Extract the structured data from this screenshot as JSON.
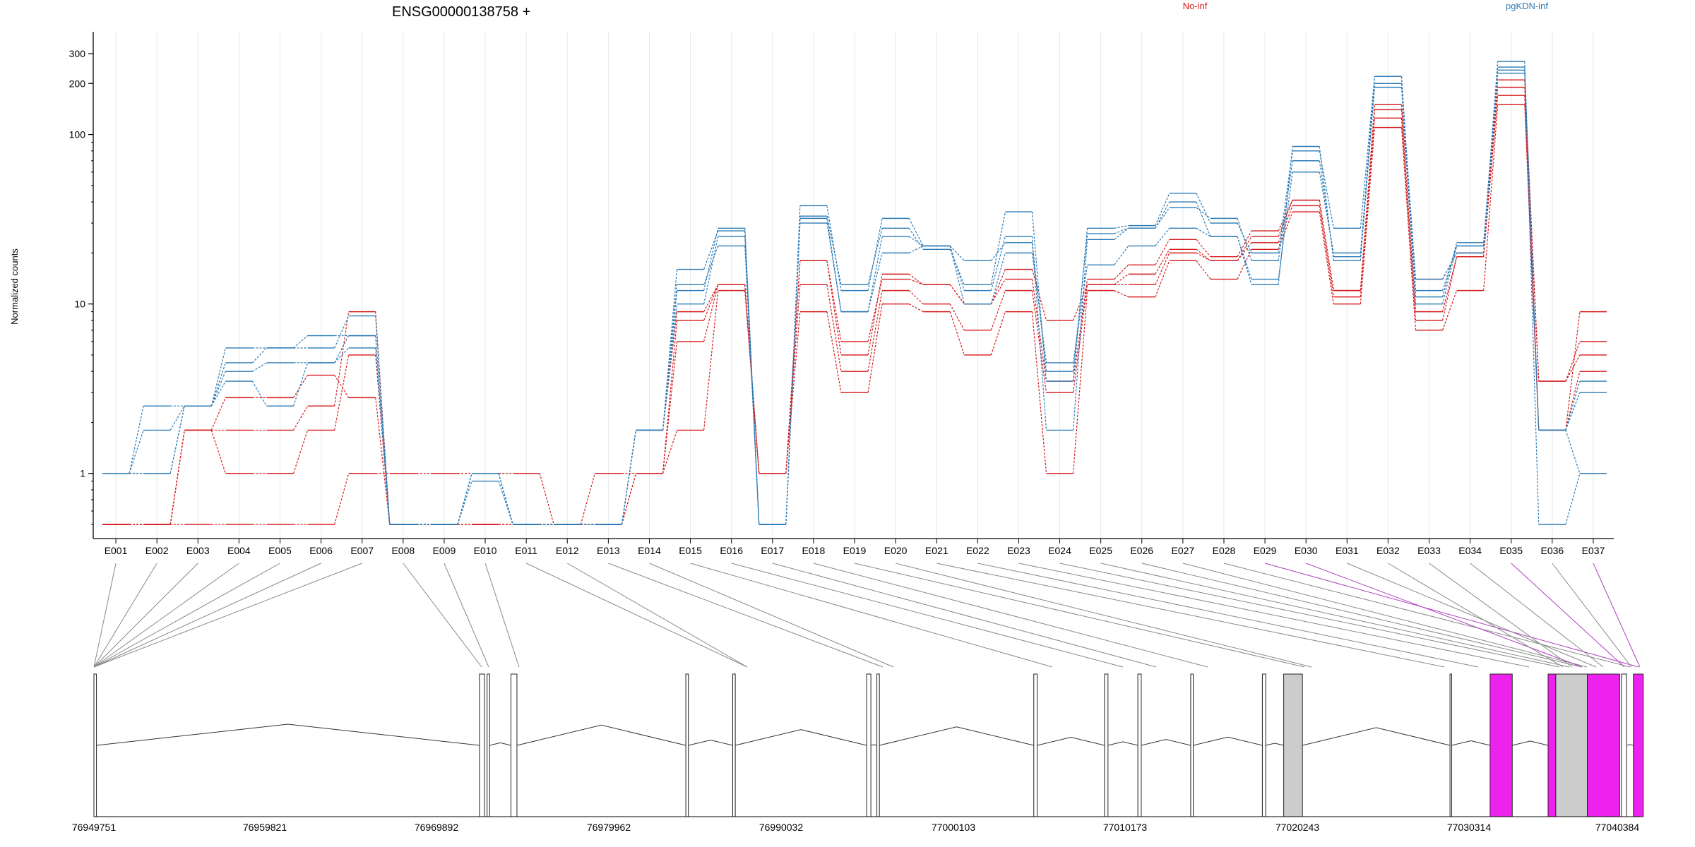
{
  "chart_data": {
    "type": "line",
    "title": "ENSG00000138758 +",
    "ylabel": "Normalized counts",
    "yscale": "log",
    "ylim": [
      0.5,
      360
    ],
    "yticks": [
      "1",
      "10",
      "100",
      "200",
      "300"
    ],
    "legend": [
      {
        "name": "No-inf",
        "color": "#d7191c"
      },
      {
        "name": "pgKDN-inf",
        "color": "#2c7bb6"
      }
    ],
    "categories": [
      "E001",
      "E002",
      "E003",
      "E004",
      "E005",
      "E006",
      "E007",
      "E008",
      "E009",
      "E010",
      "E011",
      "E012",
      "E013",
      "E014",
      "E015",
      "E016",
      "E017",
      "E018",
      "E019",
      "E020",
      "E021",
      "E022",
      "E023",
      "E024",
      "E025",
      "E026",
      "E027",
      "E028",
      "E029",
      "E030",
      "E031",
      "E032",
      "E033",
      "E034",
      "E035",
      "E036",
      "E037"
    ],
    "series": [
      {
        "group": "No-inf",
        "values": [
          0.5,
          0.5,
          0.5,
          0.5,
          0.5,
          0.5,
          1,
          1,
          1,
          1,
          1,
          0.5,
          1,
          1,
          1.8,
          12,
          1,
          9,
          3,
          10,
          9,
          5,
          9,
          1,
          12,
          11,
          18,
          14,
          21,
          35,
          10,
          110,
          7,
          12,
          150,
          1.8,
          9
        ]
      },
      {
        "group": "No-inf",
        "values": [
          0.5,
          0.5,
          1.8,
          1,
          1,
          1.8,
          5,
          0.5,
          0.5,
          0.5,
          0.5,
          0.5,
          0.5,
          1,
          6,
          13,
          1,
          13,
          4,
          12,
          10,
          7,
          12,
          3,
          13,
          13,
          20,
          18,
          23,
          38,
          11,
          125,
          8,
          19,
          170,
          1.8,
          4
        ]
      },
      {
        "group": "No-inf",
        "values": [
          0.5,
          0.5,
          1.8,
          1.8,
          1.8,
          2.5,
          9,
          0.5,
          0.5,
          0.5,
          0.5,
          0.5,
          0.5,
          1,
          8,
          13,
          1,
          18,
          6,
          14,
          13,
          10,
          16,
          8,
          13,
          15,
          21,
          18,
          25,
          41,
          12,
          140,
          9,
          19,
          190,
          3.5,
          5
        ]
      },
      {
        "group": "No-inf",
        "values": [
          0.5,
          0.5,
          1.8,
          2.8,
          2.8,
          3.8,
          2.8,
          0.5,
          0.5,
          0.5,
          0.5,
          0.5,
          0.5,
          1.8,
          9,
          13,
          1,
          18,
          5,
          15,
          13,
          10,
          14,
          3.5,
          14,
          17,
          24,
          19,
          27,
          41,
          12,
          150,
          14,
          20,
          210,
          3.5,
          6
        ]
      },
      {
        "group": "pgKDN-inf",
        "values": [
          1,
          1,
          2.5,
          4.5,
          5.5,
          6.5,
          6.5,
          0.5,
          0.5,
          1,
          0.5,
          0.5,
          0.5,
          1.8,
          13,
          22,
          0.5,
          30,
          9,
          20,
          22,
          10,
          20,
          4.5,
          17,
          22,
          28,
          25,
          14,
          60,
          20,
          200,
          14,
          20,
          250,
          1.8,
          1
        ]
      },
      {
        "group": "pgKDN-inf",
        "values": [
          1,
          1,
          2.5,
          5.5,
          5.5,
          5.5,
          8.5,
          0.5,
          0.5,
          1,
          0.5,
          0.5,
          0.5,
          1.8,
          16,
          27,
          0.5,
          32,
          9,
          25,
          22,
          18,
          23,
          4,
          26,
          28,
          37,
          32,
          18,
          70,
          19,
          220,
          12,
          22,
          270,
          0.5,
          1
        ]
      },
      {
        "group": "pgKDN-inf",
        "values": [
          1,
          2.5,
          2.5,
          3.5,
          2.5,
          4.5,
          5.5,
          0.5,
          0.5,
          1,
          0.5,
          0.5,
          0.5,
          1.8,
          10,
          25,
          0.5,
          33,
          13,
          28,
          21,
          13,
          35,
          3.5,
          28,
          29,
          45,
          30,
          20,
          80,
          28,
          220,
          11,
          23,
          240,
          1.8,
          3
        ]
      },
      {
        "group": "pgKDN-inf",
        "values": [
          1,
          1.8,
          2.5,
          4,
          4.5,
          4.5,
          6.5,
          0.5,
          0.5,
          0.9,
          0.5,
          0.5,
          0.5,
          1.8,
          12,
          28,
          0.5,
          38,
          12,
          32,
          22,
          12,
          25,
          1.8,
          24,
          28,
          40,
          25,
          13,
          85,
          18,
          190,
          10,
          22,
          230,
          1.8,
          3.5
        ]
      }
    ],
    "gene": {
      "coord_ticks": [
        "76949751",
        "76959821",
        "76969892",
        "76979962",
        "76990032",
        "77000103",
        "77010173",
        "77020243",
        "77030314",
        "77040384"
      ]
    }
  }
}
